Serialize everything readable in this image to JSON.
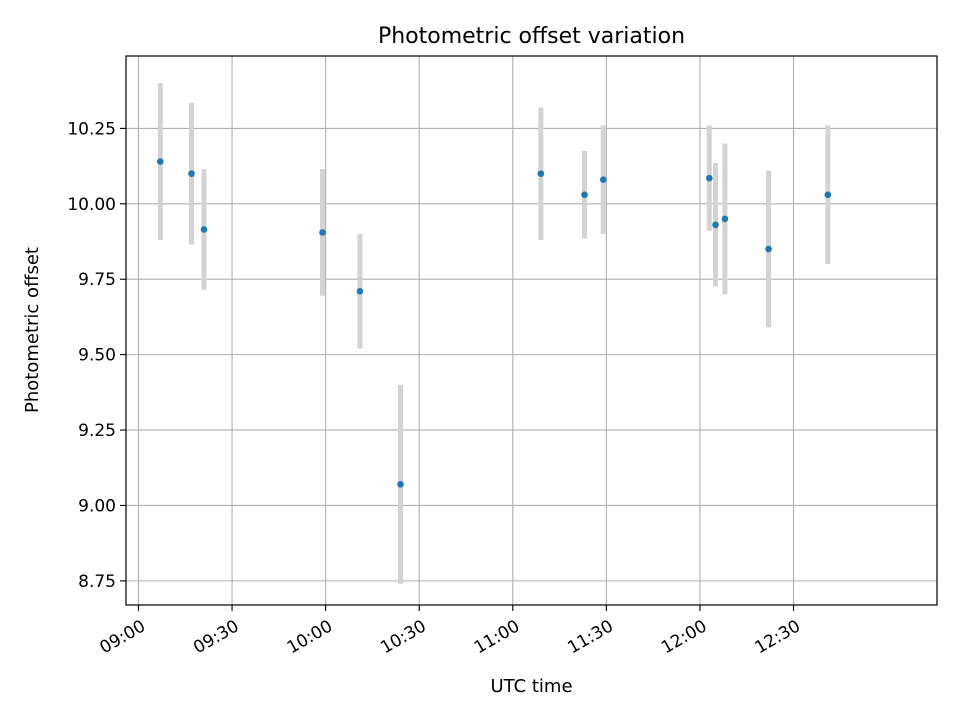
{
  "chart_data": {
    "type": "scatter",
    "title": "Photometric offset variation",
    "xlabel": "UTC time",
    "ylabel": "Photometric offset",
    "x_type": "time",
    "xlim": [
      "08:56",
      "13:16"
    ],
    "ylim": [
      8.67,
      10.49
    ],
    "x_ticks": [
      "09:00",
      "09:30",
      "10:00",
      "10:30",
      "11:00",
      "11:30",
      "12:00",
      "12:30"
    ],
    "y_ticks": [
      "8.75",
      "9.00",
      "9.25",
      "9.50",
      "9.75",
      "10.00",
      "10.25"
    ],
    "grid": true,
    "x_tick_rotation": 30,
    "marker_color": "#1f77b4",
    "errorbar_color": "#d3d3d3",
    "points": [
      {
        "x": "09:07",
        "y": 10.14,
        "err": 0.26
      },
      {
        "x": "09:17",
        "y": 10.1,
        "err": 0.235
      },
      {
        "x": "09:21",
        "y": 9.915,
        "err": 0.2
      },
      {
        "x": "09:59",
        "y": 9.905,
        "err": 0.21
      },
      {
        "x": "10:11",
        "y": 9.71,
        "err": 0.19
      },
      {
        "x": "10:24",
        "y": 9.07,
        "err": 0.33
      },
      {
        "x": "11:09",
        "y": 10.1,
        "err": 0.22
      },
      {
        "x": "11:23",
        "y": 10.03,
        "err": 0.145
      },
      {
        "x": "11:29",
        "y": 10.08,
        "err": 0.18
      },
      {
        "x": "12:03",
        "y": 10.085,
        "err": 0.175
      },
      {
        "x": "12:05",
        "y": 9.93,
        "err": 0.205
      },
      {
        "x": "12:08",
        "y": 9.95,
        "err": 0.25
      },
      {
        "x": "12:22",
        "y": 9.85,
        "err": 0.26
      },
      {
        "x": "12:41",
        "y": 10.03,
        "err": 0.23
      }
    ]
  }
}
